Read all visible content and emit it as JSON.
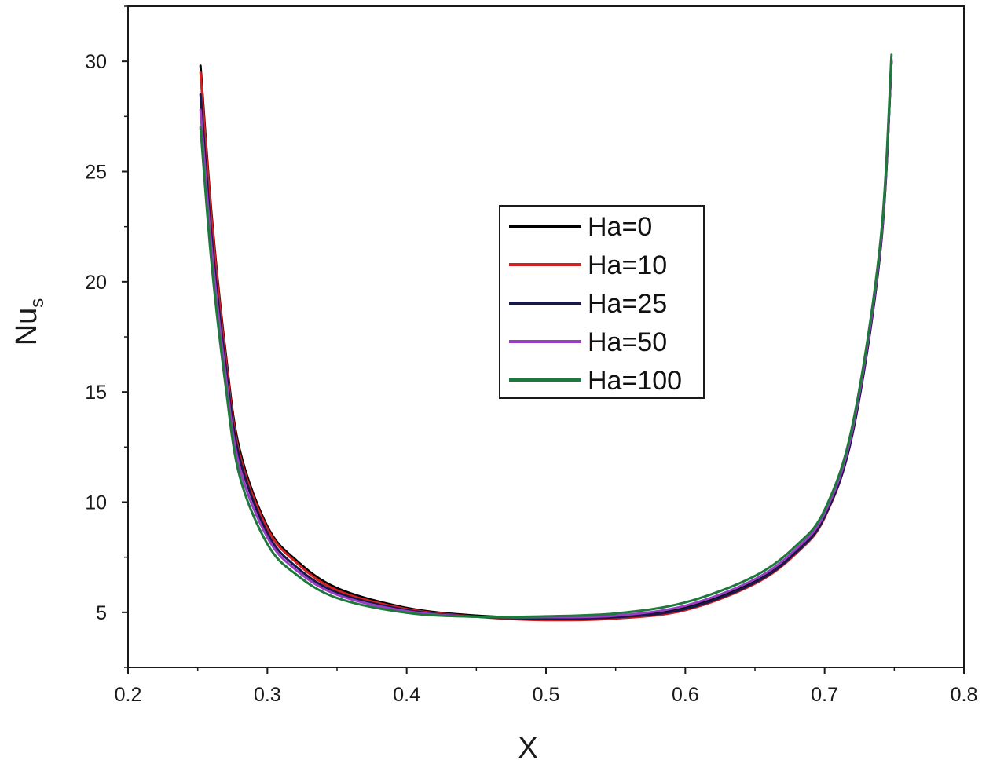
{
  "chart_data": {
    "type": "line",
    "xlabel": "X",
    "ylabel_main": "Nu",
    "ylabel_sub": "s",
    "xlim": [
      0.2,
      0.8
    ],
    "ylim": [
      2.5,
      32.5
    ],
    "xticks": [
      0.2,
      0.3,
      0.4,
      0.5,
      0.6,
      0.7,
      0.8
    ],
    "xtick_labels": [
      "0.2",
      "0.3",
      "0.4",
      "0.5",
      "0.6",
      "0.7",
      "0.8"
    ],
    "yticks": [
      5,
      10,
      15,
      20,
      25,
      30
    ],
    "ytick_labels": [
      "5",
      "10",
      "15",
      "20",
      "25",
      "30"
    ],
    "grid": false,
    "legend_position": "center",
    "x": [
      0.252,
      0.26,
      0.27,
      0.28,
      0.3,
      0.32,
      0.35,
      0.4,
      0.45,
      0.5,
      0.55,
      0.6,
      0.65,
      0.68,
      0.7,
      0.72,
      0.74,
      0.748
    ],
    "series": [
      {
        "name": "Ha=0",
        "color": "#000000",
        "values": [
          29.8,
          23.0,
          16.8,
          12.4,
          8.9,
          7.4,
          6.1,
          5.2,
          4.85,
          4.75,
          4.8,
          5.2,
          6.4,
          7.8,
          9.4,
          13.2,
          21.5,
          30.0
        ]
      },
      {
        "name": "Ha=10",
        "color": "#d42020",
        "values": [
          29.5,
          22.8,
          16.6,
          12.2,
          8.8,
          7.3,
          6.0,
          5.15,
          4.8,
          4.65,
          4.72,
          5.1,
          6.3,
          7.7,
          9.3,
          13.1,
          21.4,
          30.0
        ]
      },
      {
        "name": "Ha=25",
        "color": "#18184a",
        "values": [
          28.5,
          22.0,
          16.2,
          12.0,
          8.6,
          7.1,
          5.9,
          5.1,
          4.8,
          4.72,
          4.78,
          5.15,
          6.35,
          7.75,
          9.35,
          13.1,
          21.4,
          30.0
        ]
      },
      {
        "name": "Ha=50",
        "color": "#9a3cc4",
        "values": [
          27.8,
          21.5,
          15.8,
          11.6,
          8.4,
          6.95,
          5.8,
          5.05,
          4.8,
          4.78,
          4.85,
          5.3,
          6.5,
          7.9,
          9.5,
          13.3,
          21.6,
          30.1
        ]
      },
      {
        "name": "Ha=100",
        "color": "#1e7a3c",
        "values": [
          27.0,
          20.8,
          15.3,
          11.2,
          8.1,
          6.75,
          5.65,
          4.98,
          4.8,
          4.82,
          4.95,
          5.45,
          6.65,
          8.05,
          9.65,
          13.5,
          21.8,
          30.3
        ]
      }
    ]
  }
}
